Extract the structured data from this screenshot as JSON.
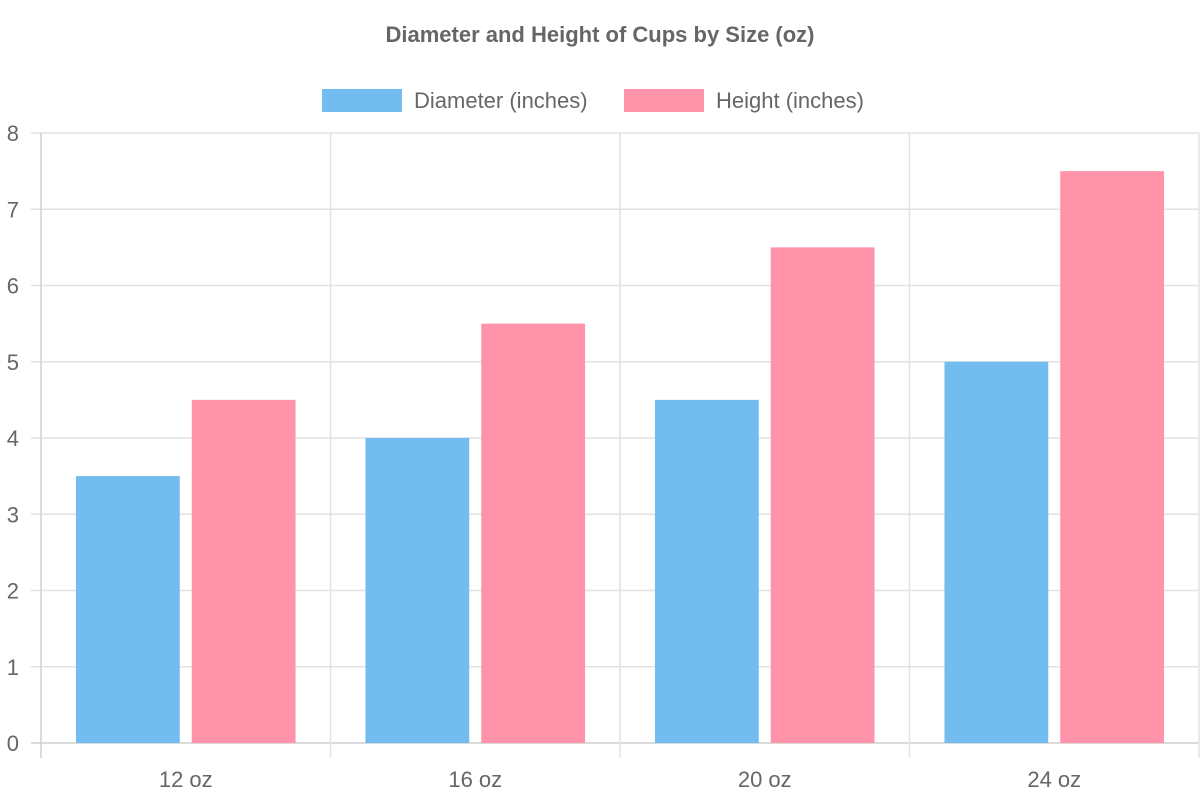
{
  "chart_data": {
    "type": "bar",
    "title": "Diameter and Height of Cups by Size (oz)",
    "categories": [
      "12 oz",
      "16 oz",
      "20 oz",
      "24 oz"
    ],
    "series": [
      {
        "name": "Diameter (inches)",
        "values": [
          3.5,
          4,
          4.5,
          5
        ],
        "color": "#72bcef"
      },
      {
        "name": "Height (inches)",
        "values": [
          4.5,
          5.5,
          6.5,
          7.5
        ],
        "color": "#ff93a9"
      }
    ],
    "ylim": [
      0,
      8
    ],
    "yticks": [
      "0",
      "1",
      "2",
      "3",
      "4",
      "5",
      "6",
      "7",
      "8"
    ],
    "grid": true,
    "legend_position": "top-center"
  }
}
